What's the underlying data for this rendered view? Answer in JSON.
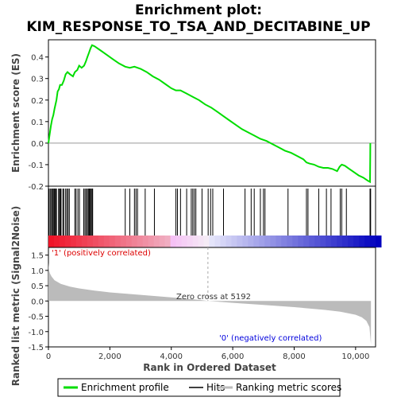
{
  "chart_data": {
    "type": "line",
    "title_line1": "Enrichment plot:",
    "title_line2": "KIM_RESPONSE_TO_TSA_AND_DECITABINE_UP",
    "top_panel": {
      "ylabel": "Enrichment score (ES)",
      "ylim": [
        -0.2,
        0.48
      ],
      "yticks": [
        "-0.2",
        "-0.1",
        "0.0",
        "0.1",
        "0.2",
        "0.3",
        "0.4"
      ],
      "ytick_values": [
        -0.2,
        -0.1,
        0.0,
        0.1,
        0.2,
        0.3,
        0.4
      ],
      "series_name": "Enrichment profile",
      "line_color": "#00dd00",
      "x": [
        0,
        40,
        80,
        120,
        160,
        200,
        260,
        300,
        340,
        380,
        440,
        500,
        560,
        620,
        700,
        800,
        860,
        940,
        1000,
        1080,
        1160,
        1220,
        1270,
        1320,
        1370,
        1420,
        1500,
        1700,
        1900,
        2100,
        2300,
        2500,
        2650,
        2800,
        3000,
        3200,
        3400,
        3600,
        3800,
        4000,
        4150,
        4300,
        4500,
        4700,
        4900,
        5100,
        5300,
        5500,
        5700,
        5900,
        6100,
        6300,
        6500,
        6700,
        6900,
        7100,
        7300,
        7500,
        7700,
        7900,
        8100,
        8300,
        8400,
        8500,
        8650,
        8800,
        8950,
        9100,
        9250,
        9400,
        9480,
        9550,
        9650,
        9800,
        9950,
        10100,
        10250,
        10400,
        10470,
        10478,
        10480
      ],
      "es": [
        0.0,
        0.04,
        0.08,
        0.11,
        0.13,
        0.16,
        0.2,
        0.24,
        0.25,
        0.27,
        0.27,
        0.29,
        0.32,
        0.33,
        0.32,
        0.31,
        0.33,
        0.34,
        0.36,
        0.35,
        0.36,
        0.38,
        0.4,
        0.42,
        0.44,
        0.455,
        0.45,
        0.43,
        0.41,
        0.39,
        0.37,
        0.355,
        0.35,
        0.355,
        0.345,
        0.33,
        0.31,
        0.295,
        0.275,
        0.255,
        0.245,
        0.245,
        0.23,
        0.215,
        0.2,
        0.18,
        0.165,
        0.145,
        0.125,
        0.105,
        0.085,
        0.065,
        0.05,
        0.035,
        0.02,
        0.01,
        -0.005,
        -0.02,
        -0.035,
        -0.045,
        -0.06,
        -0.075,
        -0.09,
        -0.095,
        -0.1,
        -0.11,
        -0.115,
        -0.115,
        -0.12,
        -0.13,
        -0.11,
        -0.1,
        -0.105,
        -0.12,
        -0.135,
        -0.15,
        -0.16,
        -0.175,
        -0.18,
        -0.06,
        0.0
      ]
    },
    "hits_panel": {
      "series_name": "Hits",
      "hits": [
        20,
        60,
        100,
        130,
        160,
        190,
        210,
        240,
        260,
        330,
        360,
        390,
        410,
        470,
        500,
        560,
        600,
        640,
        680,
        860,
        900,
        960,
        1010,
        1150,
        1190,
        1230,
        1270,
        1300,
        1330,
        1360,
        1390,
        1420,
        1440,
        2500,
        2650,
        2800,
        2850,
        2900,
        3150,
        3450,
        4150,
        4200,
        4300,
        4500,
        4650,
        4700,
        4750,
        4800,
        5000,
        5200,
        5280,
        5350,
        5700,
        6400,
        6600,
        6700,
        6900,
        7000,
        7050,
        7800,
        8400,
        8450,
        8800,
        9050,
        9200,
        9500,
        9550,
        9700,
        10470,
        10490
      ]
    },
    "metric_panel": {
      "ylabel": "Ranked list metric (Signal2Noise)",
      "ylim": [
        -1.5,
        1.75
      ],
      "yticks": [
        "-1.5",
        "-1.0",
        "-0.5",
        "0.0",
        "0.5",
        "1.0",
        "1.5"
      ],
      "ytick_values": [
        -1.5,
        -1.0,
        -0.5,
        0.0,
        0.5,
        1.0,
        1.5
      ],
      "series_name": "Ranking metric scores",
      "x": [
        0,
        20,
        50,
        100,
        200,
        400,
        700,
        1000,
        1500,
        2000,
        3000,
        4000,
        5000,
        5192,
        6000,
        7000,
        8000,
        9000,
        9500,
        10000,
        10200,
        10350,
        10450,
        10500
      ],
      "values": [
        1.25,
        1.0,
        0.9,
        0.8,
        0.68,
        0.56,
        0.47,
        0.41,
        0.34,
        0.28,
        0.2,
        0.12,
        0.03,
        0.0,
        -0.06,
        -0.13,
        -0.2,
        -0.29,
        -0.35,
        -0.45,
        -0.53,
        -0.65,
        -0.85,
        -1.42
      ],
      "pos_label": "'1' (positively correlated)",
      "neg_label": "'0' (negatively correlated)",
      "zero_cross_label": "Zero cross at 5192",
      "zero_cross": 5192
    },
    "xlabel": "Rank in Ordered Dataset",
    "xlim": [
      0,
      10650
    ],
    "xticks": [
      "0",
      "2,000",
      "4,000",
      "6,000",
      "8,000",
      "10,000"
    ],
    "xtick_values": [
      0,
      2000,
      4000,
      6000,
      8000,
      10000
    ],
    "legend": {
      "items": [
        "Enrichment profile",
        "Hits",
        "Ranking metric scores"
      ],
      "colors": [
        "#00dd00",
        "#000000",
        "#bbbbbb"
      ]
    }
  }
}
